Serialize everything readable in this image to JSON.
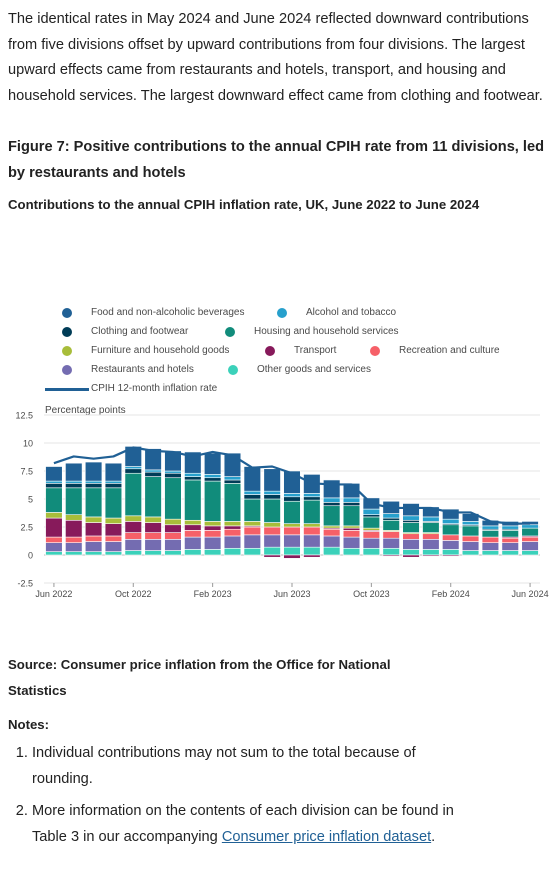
{
  "intro_text": "The identical rates in May 2024 and June 2024 reflected downward contributions from five divisions offset by upward contributions from four divisions. The largest upward effects came from restaurants and hotels, transport, and housing and household services. The largest downward effect came from clothing and footwear.",
  "figure_title": "Figure 7: Positive contributions to the annual CPIH rate from 11 divisions, led by restaurants and hotels",
  "source": "Source: Consumer price inflation from the Office for National Statistics",
  "notes_heading": "Notes:",
  "notes": [
    {
      "text": "Individual contributions may not sum to the total because of rounding."
    },
    {
      "text": "More information on the contents of each division can be found in Table 3 in our accompanying ",
      "link": "Consumer price inflation dataset",
      "after": "."
    }
  ],
  "chart_data": {
    "type": "bar",
    "stacked": true,
    "title": "Contributions to the annual CPIH inflation rate, UK, June 2022 to June 2024",
    "ylabel": "Percentage points",
    "ylim": [
      -2.5,
      12.5
    ],
    "yticks": [
      -2.5,
      0,
      2.5,
      5,
      7.5,
      10,
      12.5
    ],
    "ytick_labels": [
      "-2.5",
      "0",
      "2.5",
      "5",
      "7.5",
      "10",
      "12.5"
    ],
    "grid": true,
    "x": [
      "Jun 2022",
      "Jul 2022",
      "Aug 2022",
      "Sep 2022",
      "Oct 2022",
      "Nov 2022",
      "Dec 2022",
      "Jan 2023",
      "Feb 2023",
      "Mar 2023",
      "Apr 2023",
      "May 2023",
      "Jun 2023",
      "Jul 2023",
      "Aug 2023",
      "Sep 2023",
      "Oct 2023",
      "Nov 2023",
      "Dec 2023",
      "Jan 2024",
      "Feb 2024",
      "Mar 2024",
      "Apr 2024",
      "May 2024",
      "Jun 2024"
    ],
    "x_tick_labels": [
      {
        "index": 0,
        "label": "Jun 2022"
      },
      {
        "index": 4,
        "label": "Oct 2022"
      },
      {
        "index": 8,
        "label": "Feb 2023"
      },
      {
        "index": 12,
        "label": "Jun 2023"
      },
      {
        "index": 16,
        "label": "Oct 2023"
      },
      {
        "index": 20,
        "label": "Feb 2024"
      },
      {
        "index": 24,
        "label": "Jun 2024"
      }
    ],
    "series": [
      {
        "name": "Other goods and services",
        "color": "#3bd1ba",
        "values": [
          0.3,
          0.3,
          0.3,
          0.3,
          0.4,
          0.4,
          0.4,
          0.5,
          0.5,
          0.6,
          0.6,
          0.7,
          0.7,
          0.7,
          0.7,
          0.6,
          0.6,
          0.6,
          0.5,
          0.5,
          0.5,
          0.4,
          0.4,
          0.4,
          0.4
        ]
      },
      {
        "name": "Restaurants and hotels",
        "color": "#746cb1",
        "values": [
          0.8,
          0.8,
          0.9,
          0.9,
          1.0,
          1.0,
          1.0,
          1.1,
          1.1,
          1.1,
          1.2,
          1.1,
          1.1,
          1.1,
          1.0,
          1.0,
          0.9,
          0.9,
          0.9,
          0.9,
          0.8,
          0.8,
          0.7,
          0.7,
          0.8
        ]
      },
      {
        "name": "Recreation and culture",
        "color": "#f66068",
        "values": [
          0.5,
          0.5,
          0.5,
          0.5,
          0.6,
          0.6,
          0.6,
          0.6,
          0.6,
          0.6,
          0.7,
          0.7,
          0.7,
          0.7,
          0.6,
          0.6,
          0.6,
          0.6,
          0.5,
          0.5,
          0.5,
          0.5,
          0.5,
          0.4,
          0.4
        ]
      },
      {
        "name": "Transport",
        "color": "#871a5b",
        "values": [
          1.7,
          1.5,
          1.2,
          1.1,
          1.0,
          0.9,
          0.7,
          0.5,
          0.4,
          0.3,
          0.1,
          -0.2,
          -0.3,
          -0.2,
          0.1,
          0.2,
          0.1,
          -0.1,
          -0.2,
          -0.1,
          -0.1,
          0.0,
          0.0,
          0.1,
          0.1
        ]
      },
      {
        "name": "Furniture and household goods",
        "color": "#a8bd3a",
        "values": [
          0.5,
          0.5,
          0.5,
          0.5,
          0.5,
          0.5,
          0.5,
          0.4,
          0.4,
          0.4,
          0.4,
          0.4,
          0.3,
          0.3,
          0.2,
          0.2,
          0.2,
          0.1,
          0.1,
          0.1,
          0.0,
          0.0,
          0.0,
          0.0,
          0.0
        ]
      },
      {
        "name": "Housing and household services",
        "color": "#118c7b",
        "values": [
          2.2,
          2.4,
          2.6,
          2.7,
          3.8,
          3.6,
          3.7,
          3.6,
          3.6,
          3.4,
          2.0,
          2.1,
          2.0,
          2.1,
          1.8,
          1.8,
          1.0,
          0.9,
          0.9,
          0.9,
          0.9,
          0.9,
          0.6,
          0.6,
          0.7
        ]
      },
      {
        "name": "Clothing and footwear",
        "color": "#003c57",
        "values": [
          0.4,
          0.4,
          0.4,
          0.4,
          0.4,
          0.4,
          0.4,
          0.3,
          0.3,
          0.3,
          0.4,
          0.4,
          0.4,
          0.3,
          0.3,
          0.3,
          0.2,
          0.2,
          0.2,
          0.1,
          0.1,
          0.1,
          0.1,
          0.1,
          0.0
        ]
      },
      {
        "name": "Alcohol and tobacco",
        "color": "#27a0cc",
        "values": [
          0.2,
          0.2,
          0.2,
          0.2,
          0.2,
          0.2,
          0.2,
          0.3,
          0.3,
          0.3,
          0.3,
          0.3,
          0.3,
          0.3,
          0.4,
          0.4,
          0.5,
          0.4,
          0.4,
          0.4,
          0.4,
          0.3,
          0.3,
          0.3,
          0.3
        ]
      },
      {
        "name": "Food and non-alcoholic beverages",
        "color": "#206095",
        "values": [
          1.3,
          1.6,
          1.7,
          1.6,
          1.8,
          1.9,
          1.8,
          1.9,
          1.9,
          2.1,
          2.2,
          2.0,
          2.0,
          1.7,
          1.6,
          1.3,
          1.0,
          1.1,
          1.1,
          0.9,
          0.9,
          0.7,
          0.5,
          0.4,
          0.3
        ]
      }
    ],
    "line": {
      "name": "CPIH 12-month inflation rate",
      "color": "#206095",
      "values": [
        8.2,
        8.8,
        8.6,
        8.8,
        9.6,
        9.3,
        9.2,
        8.8,
        9.2,
        8.9,
        7.8,
        7.9,
        7.3,
        6.4,
        6.3,
        6.3,
        4.6,
        4.2,
        4.2,
        4.2,
        3.8,
        3.8,
        3.0,
        2.8,
        2.8
      ]
    },
    "legend": [
      {
        "name": "Food and non-alcoholic beverages",
        "color": "#206095"
      },
      {
        "name": "Alcohol and tobacco",
        "color": "#27a0cc"
      },
      {
        "name": "Clothing and footwear",
        "color": "#003c57"
      },
      {
        "name": "Housing and household services",
        "color": "#118c7b"
      },
      {
        "name": "Furniture and household goods",
        "color": "#a8bd3a"
      },
      {
        "name": "Transport",
        "color": "#871a5b"
      },
      {
        "name": "Recreation and culture",
        "color": "#f66068"
      },
      {
        "name": "Restaurants and hotels",
        "color": "#746cb1"
      },
      {
        "name": "Other goods and services",
        "color": "#3bd1ba"
      },
      {
        "name": "CPIH 12-month inflation rate",
        "color": "#206095",
        "kind": "line"
      }
    ]
  }
}
